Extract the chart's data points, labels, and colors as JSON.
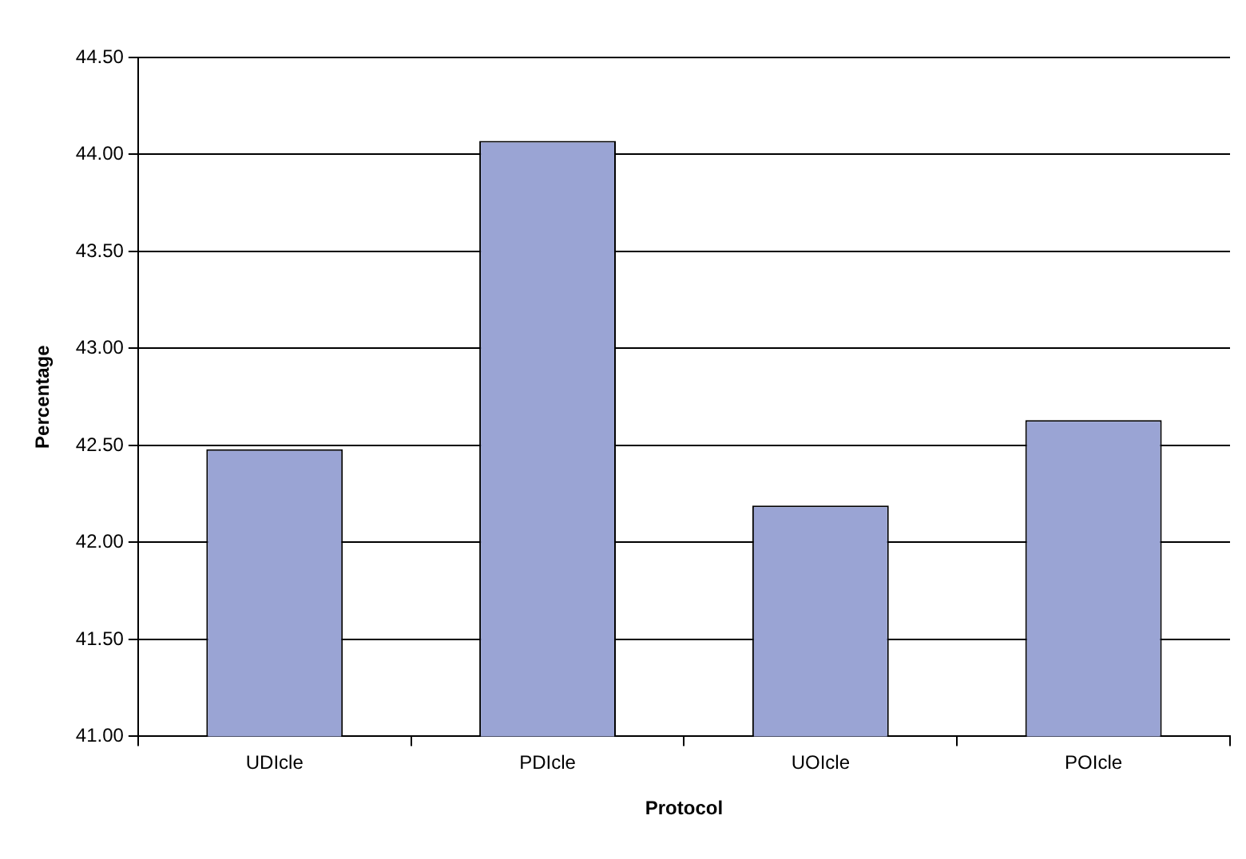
{
  "chart_data": {
    "type": "bar",
    "xlabel": "Protocol",
    "ylabel": "Percentage",
    "categories": [
      "UDIcle",
      "PDIcle",
      "UOIcle",
      "POIcle"
    ],
    "values": [
      42.48,
      44.07,
      42.19,
      42.63
    ],
    "color": "#9aa4d4",
    "ylim": [
      41,
      44.5
    ],
    "yticks": [
      {
        "value": 41,
        "label": "41.00"
      },
      {
        "value": 41.5,
        "label": "41.50"
      },
      {
        "value": 42,
        "label": "42.00"
      },
      {
        "value": 42.5,
        "label": "42.50"
      },
      {
        "value": 43,
        "label": "43.00"
      },
      {
        "value": 43.5,
        "label": "43.50"
      },
      {
        "value": 44,
        "label": "44.00"
      },
      {
        "value": 44.5,
        "label": "44.50"
      }
    ],
    "grid": "y",
    "legend": false
  }
}
